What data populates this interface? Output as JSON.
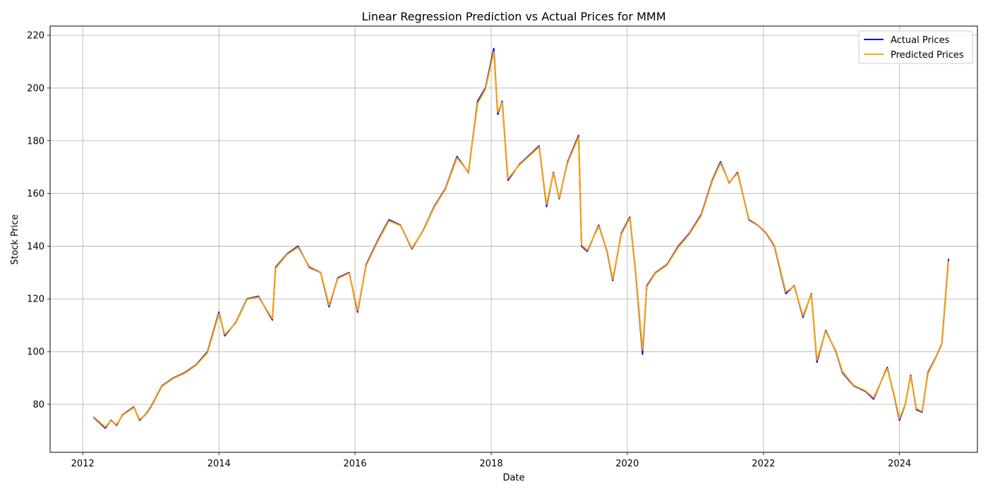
{
  "chart_data": {
    "type": "line",
    "title": "Linear Regression Prediction vs Actual Prices for MMM",
    "xlabel": "Date",
    "ylabel": "Stock Price",
    "xlim": [
      "2011-07-10",
      "2025-02-22"
    ],
    "ylim": [
      61.8,
      223.5
    ],
    "x_ticks": [
      "2012",
      "2014",
      "2016",
      "2018",
      "2020",
      "2022",
      "2024"
    ],
    "y_ticks": [
      80,
      100,
      120,
      140,
      160,
      180,
      200,
      220
    ],
    "grid": true,
    "legend_position": "top-right",
    "series": [
      {
        "name": "Actual Prices",
        "color": "#0000ff",
        "x": [
          "2012-03-01",
          "2012-04-01",
          "2012-05-01",
          "2012-06-01",
          "2012-07-01",
          "2012-08-01",
          "2012-10-01",
          "2012-11-01",
          "2012-12-01",
          "2013-01-01",
          "2013-03-01",
          "2013-05-01",
          "2013-07-01",
          "2013-09-01",
          "2013-11-01",
          "2014-01-01",
          "2014-02-01",
          "2014-04-01",
          "2014-06-01",
          "2014-08-01",
          "2014-10-15",
          "2014-11-01",
          "2015-01-01",
          "2015-03-01",
          "2015-05-01",
          "2015-07-01",
          "2015-08-15",
          "2015-10-01",
          "2015-12-01",
          "2016-01-15",
          "2016-03-01",
          "2016-05-01",
          "2016-07-01",
          "2016-09-01",
          "2016-11-01",
          "2017-01-01",
          "2017-03-01",
          "2017-05-01",
          "2017-07-01",
          "2017-09-01",
          "2017-10-20",
          "2017-12-01",
          "2018-01-15",
          "2018-02-05",
          "2018-03-01",
          "2018-04-01",
          "2018-06-01",
          "2018-08-01",
          "2018-09-15",
          "2018-10-25",
          "2018-12-01",
          "2019-01-01",
          "2019-02-15",
          "2019-04-15",
          "2019-05-01",
          "2019-06-01",
          "2019-08-01",
          "2019-09-15",
          "2019-10-15",
          "2019-12-01",
          "2020-01-15",
          "2020-02-15",
          "2020-03-23",
          "2020-04-15",
          "2020-06-01",
          "2020-08-01",
          "2020-10-01",
          "2020-12-01",
          "2021-02-01",
          "2021-04-01",
          "2021-05-15",
          "2021-07-01",
          "2021-08-15",
          "2021-10-15",
          "2021-12-01",
          "2022-01-15",
          "2022-03-01",
          "2022-05-01",
          "2022-06-15",
          "2022-08-01",
          "2022-09-15",
          "2022-10-15",
          "2022-12-01",
          "2023-01-25",
          "2023-03-01",
          "2023-05-01",
          "2023-07-01",
          "2023-08-15",
          "2023-10-27",
          "2023-12-01",
          "2024-01-01",
          "2024-02-01",
          "2024-03-01",
          "2024-04-01",
          "2024-05-01",
          "2024-06-01",
          "2024-07-15",
          "2024-08-15",
          "2024-09-20"
        ],
        "y": [
          75,
          73,
          71,
          74,
          72,
          76,
          79,
          74,
          76,
          79,
          87,
          90,
          92,
          95,
          100,
          115,
          106,
          111,
          120,
          121,
          112,
          132,
          137,
          140,
          132,
          130,
          117,
          128,
          130,
          115,
          133,
          142,
          150,
          148,
          139,
          146,
          155,
          162,
          174,
          168,
          195,
          200,
          215,
          190,
          195,
          165,
          171,
          175,
          178,
          155,
          168,
          158,
          172,
          182,
          140,
          138,
          148,
          138,
          127,
          145,
          151,
          130,
          99,
          125,
          130,
          133,
          140,
          145,
          152,
          165,
          172,
          164,
          168,
          150,
          148,
          145,
          140,
          122,
          125,
          113,
          122,
          96,
          108,
          100,
          92,
          87,
          85,
          82,
          94,
          84,
          74,
          80,
          91,
          78,
          77,
          92,
          98,
          103,
          135
        ]
      },
      {
        "name": "Predicted Prices",
        "color": "#ffa500",
        "x": [
          "2012-03-01",
          "2012-04-01",
          "2012-05-01",
          "2012-06-01",
          "2012-07-01",
          "2012-08-01",
          "2012-10-01",
          "2012-11-01",
          "2012-12-01",
          "2013-01-01",
          "2013-03-01",
          "2013-05-01",
          "2013-07-01",
          "2013-09-01",
          "2013-11-01",
          "2014-01-01",
          "2014-02-01",
          "2014-04-01",
          "2014-06-01",
          "2014-08-01",
          "2014-10-15",
          "2014-11-01",
          "2015-01-01",
          "2015-03-01",
          "2015-05-01",
          "2015-07-01",
          "2015-08-15",
          "2015-10-01",
          "2015-12-01",
          "2016-01-15",
          "2016-03-01",
          "2016-05-01",
          "2016-07-01",
          "2016-09-01",
          "2016-11-01",
          "2017-01-01",
          "2017-03-01",
          "2017-05-01",
          "2017-07-01",
          "2017-09-01",
          "2017-10-20",
          "2017-12-01",
          "2018-01-15",
          "2018-02-05",
          "2018-03-01",
          "2018-04-01",
          "2018-06-01",
          "2018-08-01",
          "2018-09-15",
          "2018-10-25",
          "2018-12-01",
          "2019-01-01",
          "2019-02-15",
          "2019-04-15",
          "2019-05-01",
          "2019-06-01",
          "2019-08-01",
          "2019-09-15",
          "2019-10-15",
          "2019-12-01",
          "2020-01-15",
          "2020-02-15",
          "2020-03-23",
          "2020-04-15",
          "2020-06-01",
          "2020-08-01",
          "2020-10-01",
          "2020-12-01",
          "2021-02-01",
          "2021-04-01",
          "2021-05-15",
          "2021-07-01",
          "2021-08-15",
          "2021-10-15",
          "2021-12-01",
          "2022-01-15",
          "2022-03-01",
          "2022-05-01",
          "2022-06-15",
          "2022-08-01",
          "2022-09-15",
          "2022-10-15",
          "2022-12-01",
          "2023-01-25",
          "2023-03-01",
          "2023-05-01",
          "2023-07-01",
          "2023-08-15",
          "2023-10-27",
          "2023-12-01",
          "2024-01-01",
          "2024-02-01",
          "2024-03-01",
          "2024-04-01",
          "2024-05-01",
          "2024-06-01",
          "2024-07-15",
          "2024-08-15",
          "2024-09-20"
        ],
        "y": [
          75.2,
          73.3,
          71.4,
          73.8,
          72.3,
          75.8,
          78.8,
          74.3,
          75.8,
          78.8,
          86.8,
          89.8,
          91.8,
          94.8,
          99.6,
          114.4,
          106.5,
          110.8,
          119.8,
          120.7,
          112.5,
          131.6,
          136.8,
          139.6,
          132.3,
          130.1,
          117.6,
          127.7,
          129.8,
          115.6,
          132.6,
          141.6,
          149.6,
          147.8,
          139.3,
          145.8,
          154.7,
          161.7,
          173.5,
          168.2,
          194.2,
          199.5,
          213.8,
          190.8,
          194.6,
          165.6,
          170.8,
          174.7,
          177.6,
          155.8,
          167.7,
          158.3,
          171.6,
          181.4,
          140.5,
          138.4,
          147.6,
          138.3,
          127.5,
          144.6,
          150.6,
          130.4,
          100.5,
          124.6,
          129.8,
          132.8,
          139.6,
          144.7,
          151.6,
          164.6,
          171.5,
          164.2,
          167.6,
          150.3,
          148.1,
          145.2,
          140.3,
          122.6,
          124.8,
          113.6,
          121.7,
          96.8,
          107.7,
          100.3,
          92.4,
          87.2,
          85.2,
          82.5,
          93.6,
          84.3,
          74.6,
          80.1,
          90.6,
          78.4,
          77.3,
          91.6,
          97.8,
          102.8,
          134.2
        ]
      }
    ]
  }
}
